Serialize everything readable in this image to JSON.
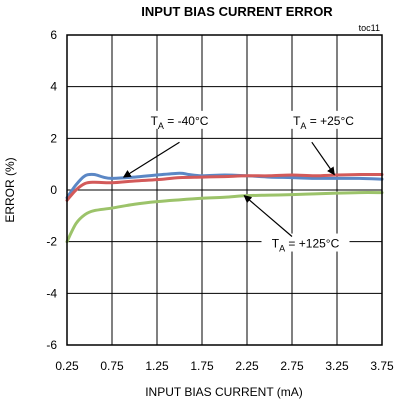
{
  "chart_data": {
    "type": "line",
    "title": "INPUT BIAS CURRENT ERROR",
    "figure_tag": "toc11",
    "xlabel": "INPUT BIAS CURRENT (mA)",
    "ylabel": "ERROR (%)",
    "xlim": [
      0.25,
      3.75
    ],
    "ylim": [
      -6,
      6
    ],
    "xticks": [
      "0.25",
      "0.75",
      "1.25",
      "1.75",
      "2.25",
      "2.75",
      "3.25",
      "3.75"
    ],
    "yticks": [
      "6",
      "4",
      "2",
      "0",
      "-2",
      "-4",
      "-6"
    ],
    "grid": true,
    "series": [
      {
        "name": "T_A = -40°C",
        "color": "#5b87c5",
        "x": [
          0.25,
          0.35,
          0.45,
          0.55,
          0.65,
          0.75,
          1.0,
          1.25,
          1.5,
          1.6,
          1.75,
          2.0,
          2.25,
          2.5,
          2.75,
          3.0,
          3.25,
          3.5,
          3.75
        ],
        "y": [
          -0.3,
          0.2,
          0.55,
          0.6,
          0.5,
          0.45,
          0.5,
          0.58,
          0.65,
          0.6,
          0.55,
          0.58,
          0.55,
          0.5,
          0.48,
          0.45,
          0.45,
          0.45,
          0.42
        ]
      },
      {
        "name": "T_A = +25°C",
        "color": "#d35a5a",
        "x": [
          0.25,
          0.35,
          0.45,
          0.55,
          0.75,
          1.0,
          1.25,
          1.5,
          1.75,
          2.0,
          2.25,
          2.5,
          2.75,
          3.0,
          3.25,
          3.5,
          3.75
        ],
        "y": [
          -0.4,
          0.0,
          0.25,
          0.3,
          0.28,
          0.35,
          0.4,
          0.48,
          0.5,
          0.52,
          0.55,
          0.55,
          0.58,
          0.55,
          0.58,
          0.6,
          0.6
        ]
      },
      {
        "name": "T_A = +125°C",
        "color": "#9cc36a",
        "x": [
          0.25,
          0.35,
          0.45,
          0.55,
          0.75,
          1.0,
          1.25,
          1.5,
          1.75,
          2.0,
          2.25,
          2.5,
          2.75,
          3.0,
          3.25,
          3.5,
          3.75
        ],
        "y": [
          -2.0,
          -1.3,
          -0.95,
          -0.8,
          -0.7,
          -0.55,
          -0.45,
          -0.38,
          -0.32,
          -0.28,
          -0.22,
          -0.2,
          -0.18,
          -0.15,
          -0.12,
          -0.1,
          -0.1
        ]
      }
    ],
    "annotations": [
      {
        "text_main": "T",
        "text_sub": "A",
        "text_rest": " = -40°C",
        "series_index": 0
      },
      {
        "text_main": "T",
        "text_sub": "A",
        "text_rest": " = +25°C",
        "series_index": 1
      },
      {
        "text_main": "T",
        "text_sub": "A",
        "text_rest": " = +125°C",
        "series_index": 2
      }
    ]
  }
}
